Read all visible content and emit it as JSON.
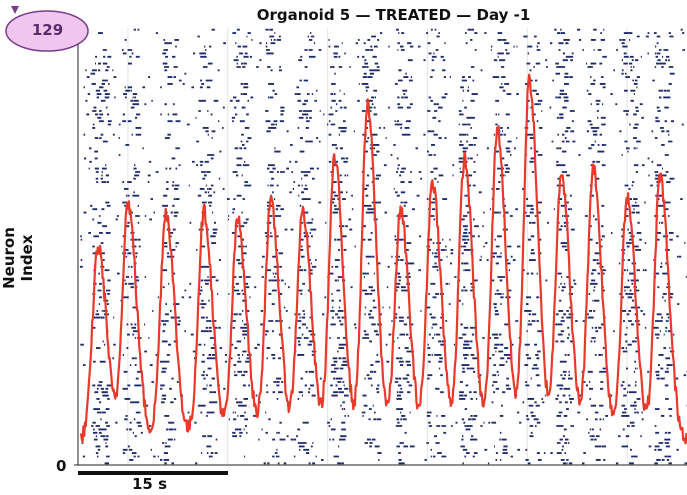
{
  "chart_data": {
    "type": "line",
    "overlay_type": "raster",
    "title": "Organoid 5 — TREATED — Day -1",
    "xlabel": "",
    "ylabel": "Neuron Index",
    "yticks": [
      "0"
    ],
    "scale_bar_label": "15 s",
    "scale_bar_seconds": 15,
    "xlim_seconds": [
      0,
      61
    ],
    "neuron_count": 129,
    "raster_color": "#1f2a6b",
    "trace_color": "#e8392a",
    "grid": true,
    "burst_times_s": [
      2.0,
      5.0,
      8.8,
      12.6,
      16.0,
      19.3,
      22.5,
      25.7,
      29.0,
      32.3,
      35.5,
      38.7,
      42.0,
      45.2,
      48.4,
      51.6,
      55.0,
      58.3
    ],
    "burst_peaks": [
      0.5,
      0.6,
      0.58,
      0.58,
      0.56,
      0.6,
      0.58,
      0.7,
      0.82,
      0.58,
      0.65,
      0.7,
      0.77,
      0.88,
      0.67,
      0.68,
      0.61,
      0.66
    ],
    "trace_baseline": 0.06,
    "trace_ylim": [
      0,
      1
    ]
  },
  "badge": {
    "text": "129",
    "fill": "#f0c6ef",
    "stroke": "#7a3c8c"
  }
}
